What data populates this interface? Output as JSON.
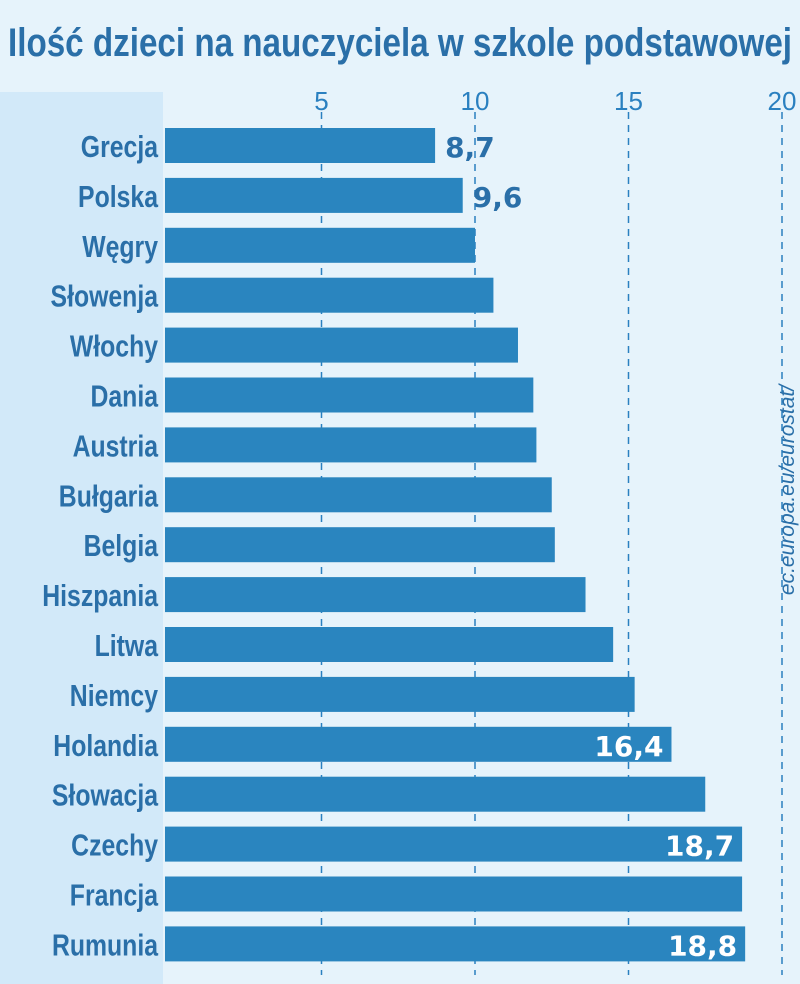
{
  "chart_data": {
    "type": "bar",
    "orientation": "horizontal",
    "title": "Ilość dzieci na nauczyciela w szkole podstawowej",
    "source": "ec.europa.eu/eurostat/",
    "categories": [
      "Grecja",
      "Polska",
      "Węgry",
      "Słowenja",
      "Włochy",
      "Dania",
      "Austria",
      "Bułgaria",
      "Belgia",
      "Hiszpania",
      "Litwa",
      "Niemcy",
      "Holandia",
      "Słowacja",
      "Czechy",
      "Francja",
      "Rumunia"
    ],
    "values": [
      8.7,
      9.6,
      10.0,
      10.6,
      11.4,
      11.9,
      12.0,
      12.5,
      12.6,
      13.6,
      14.5,
      15.2,
      16.4,
      17.5,
      18.7,
      18.7,
      18.8
    ],
    "data_labels": {
      "0": "8,7",
      "1": "9,6",
      "12": "16,4",
      "14": "18,7",
      "16": "18,8"
    },
    "xticks": [
      "5",
      "10",
      "15",
      "20"
    ],
    "xtick_values": [
      5,
      10,
      15,
      20
    ],
    "xlim": [
      0,
      20
    ],
    "grid": "dashed vertical",
    "colors": {
      "bar": "#2a85bf",
      "text": "#2a6fa8",
      "background": "#e6f3fb",
      "label_panel": "#d2e9f9",
      "value_inside": "#ffffff",
      "value_outside": "#2a6fa8"
    }
  }
}
